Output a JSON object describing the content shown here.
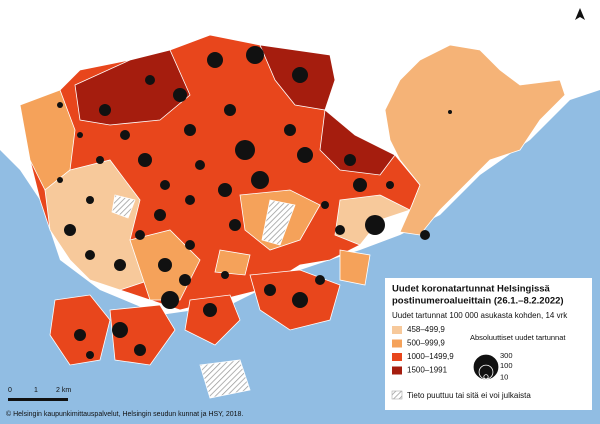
{
  "title_lines": [
    "Uudet koronatartunnat Helsingissä",
    "postinumeroalueittain (26.1.–8.2.2022)"
  ],
  "subtitle": "Uudet tartunnat 100 000 asukasta kohden, 14 vrk",
  "rate_classes": [
    {
      "label": "458–499,9",
      "color": "#f7c99b"
    },
    {
      "label": "500–999,9",
      "color": "#f5a25a"
    },
    {
      "label": "1000–1499,9",
      "color": "#e8461c"
    },
    {
      "label": "1500–1991",
      "color": "#a51d0e"
    }
  ],
  "size_legend": {
    "title": "Absoluuttiset uudet tartunnat",
    "sizes": [
      300,
      100,
      10
    ]
  },
  "no_data": "Tieto puuttuu tai sitä ei voi julkaista",
  "scale_bar": [
    "0",
    "1",
    "2 km"
  ],
  "credit": "© Helsingin kaupunkimittauspalvelut, Helsingin seudun kunnat ja HSY, 2018."
}
